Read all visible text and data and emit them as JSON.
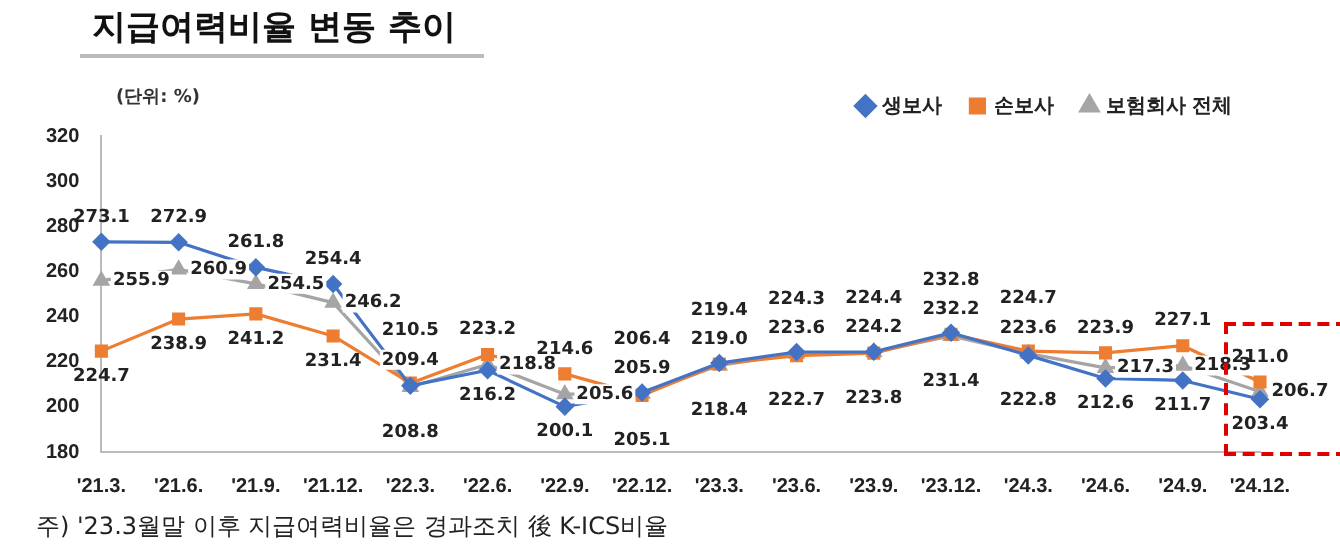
{
  "chart_data": {
    "type": "line",
    "title": "지급여력비율 변동 추이",
    "ylabel": "(단위: %)",
    "annotations": [
      "주) '23.3월말 이후 지급여력비율은 경과조치 後 K-ICS비율"
    ],
    "categories": [
      "'21.3.",
      "'21.6.",
      "'21.9.",
      "'21.12.",
      "'22.3.",
      "'22.6.",
      "'22.9.",
      "'22.12.",
      "'23.3.",
      "'23.6.",
      "'23.9.",
      "'23.12.",
      "'24.3.",
      "'24.6.",
      "'24.9.",
      "'24.12."
    ],
    "series": [
      {
        "name": "생보사",
        "color": "#4472c4",
        "marker": "diamond",
        "values": [
          273.1,
          272.9,
          261.8,
          254.4,
          209.4,
          216.2,
          200.1,
          206.4,
          219.4,
          224.3,
          224.4,
          232.8,
          222.8,
          212.6,
          211.7,
          203.4
        ],
        "value_labels": [
          "273.1",
          "272.9",
          "261.8",
          "254.4",
          "209.4",
          "216.2",
          "200.1",
          "206.4",
          "219.4",
          "224.3",
          "224.4",
          "232.8",
          "222.8",
          "212.6",
          "211.7",
          "203.4"
        ]
      },
      {
        "name": "손보사",
        "color": "#ed7d31",
        "marker": "square",
        "values": [
          224.7,
          238.9,
          241.2,
          231.4,
          210.5,
          223.2,
          214.6,
          205.1,
          219.0,
          222.7,
          223.8,
          232.2,
          224.7,
          223.9,
          227.1,
          211.0
        ],
        "value_labels": [
          "224.7",
          "238.9",
          "241.2",
          "231.4",
          "210.5",
          "223.2",
          "214.6",
          "205.1",
          "219.0",
          "222.7",
          "223.8",
          "232.2",
          "224.7",
          "223.9",
          "227.1",
          "211.0"
        ]
      },
      {
        "name": "보험회사 전체",
        "color": "#a5a5a5",
        "marker": "triangle",
        "values": [
          255.9,
          260.9,
          254.5,
          246.2,
          208.8,
          218.8,
          205.6,
          205.9,
          218.4,
          223.6,
          224.2,
          231.4,
          223.6,
          217.3,
          218.3,
          206.7
        ],
        "value_labels": [
          "255.9",
          "260.9",
          "254.5",
          "246.2",
          "208.8",
          "218.8",
          "205.6",
          "205.9",
          "218.4",
          "223.6",
          "224.2",
          "231.4",
          "223.6",
          "217.3",
          "218.3",
          "206.7"
        ]
      }
    ],
    "ylim": [
      180,
      320
    ],
    "yticks": [
      180,
      200,
      220,
      240,
      260,
      280,
      300,
      320
    ],
    "grid": false,
    "legend": "top right"
  }
}
